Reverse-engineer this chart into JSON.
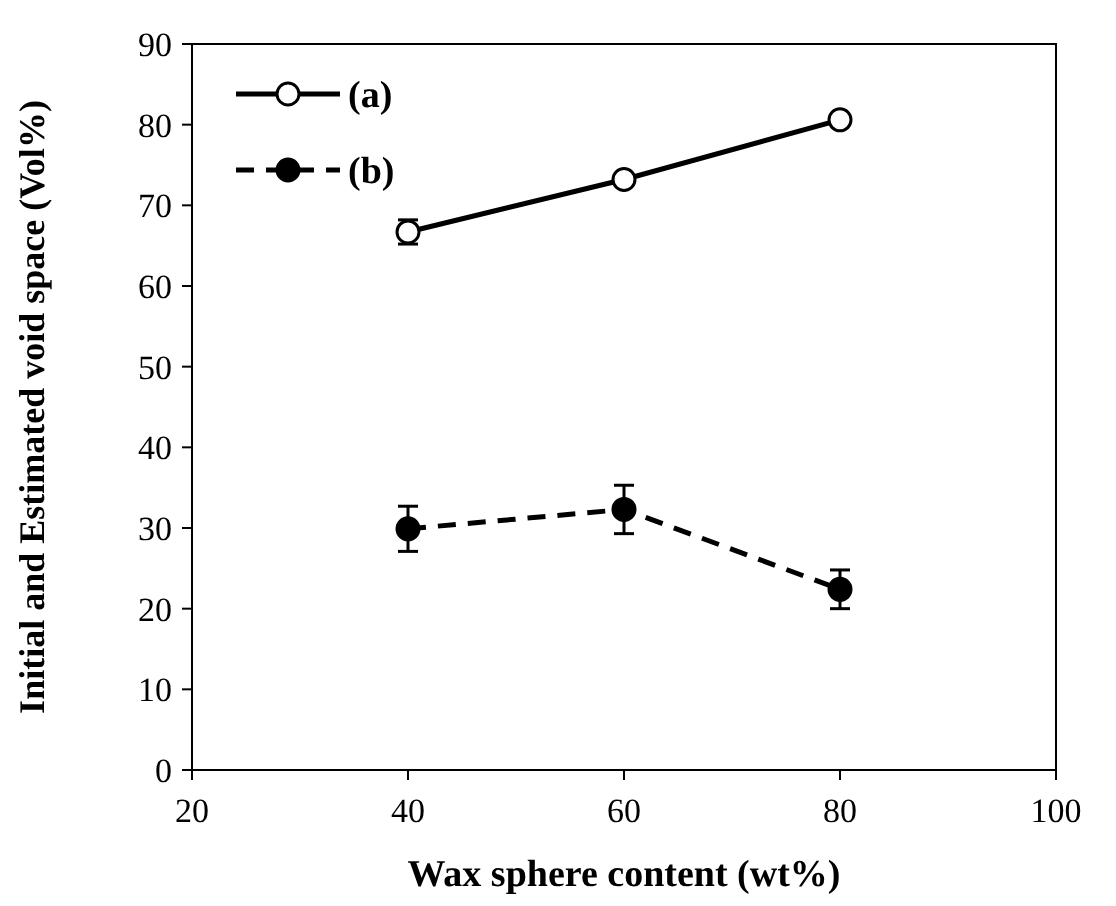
{
  "chart_data": {
    "type": "line",
    "xlabel": "Wax sphere content (wt%)",
    "ylabel": "Initial and Estimated void space  (Vol%)",
    "x": [
      40,
      60,
      80
    ],
    "series": [
      {
        "name": "(a)",
        "color": "#000000",
        "values": [
          66.7,
          73.2,
          80.6
        ],
        "errors": [
          1.5,
          null,
          null
        ],
        "line_style": "solid",
        "marker": "circle"
      },
      {
        "name": "(b)",
        "color": "#000000",
        "values": [
          29.9,
          32.3,
          22.4
        ],
        "errors": [
          2.8,
          3.0,
          2.4
        ],
        "line_style": "dashed",
        "marker": "circle"
      }
    ],
    "xlim": [
      20,
      100
    ],
    "xticks": [
      20,
      40,
      60,
      80,
      100
    ],
    "ylim": [
      0,
      90
    ],
    "yticks": [
      0,
      10,
      20,
      30,
      40,
      50,
      60,
      70,
      80,
      90
    ],
    "grid": false,
    "legend": "top left"
  }
}
